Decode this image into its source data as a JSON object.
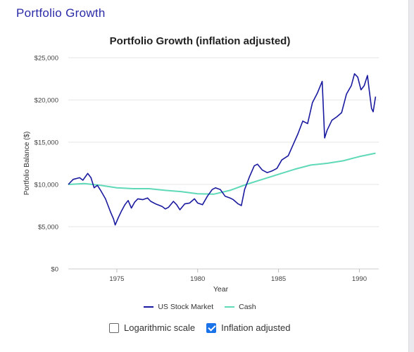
{
  "section_title": "Portfolio Growth",
  "colors": {
    "stock": "#1a1aa0",
    "cash": "#5fd9b8",
    "grid": "#e6e6e6"
  },
  "chart_data": {
    "type": "line",
    "title": "Portfolio Growth (inflation adjusted)",
    "xlabel": "Year",
    "ylabel": "Portfolio Balance ($)",
    "xlim": [
      1972,
      1991.2
    ],
    "ylim": [
      0,
      25000
    ],
    "x_ticks": [
      1975,
      1980,
      1985,
      1990
    ],
    "y_ticks": [
      0,
      5000,
      10000,
      15000,
      20000,
      25000
    ],
    "y_tick_labels": [
      "$0",
      "$5,000",
      "$10,000",
      "$15,000",
      "$20,000",
      "$25,000"
    ],
    "grid": true,
    "legend_position": "bottom",
    "series": [
      {
        "name": "US Stock Market",
        "points": [
          [
            1972.0,
            10000
          ],
          [
            1972.3,
            10600
          ],
          [
            1972.7,
            10800
          ],
          [
            1972.9,
            10500
          ],
          [
            1973.2,
            11300
          ],
          [
            1973.4,
            10800
          ],
          [
            1973.6,
            9600
          ],
          [
            1973.8,
            9900
          ],
          [
            1974.0,
            9300
          ],
          [
            1974.3,
            8300
          ],
          [
            1974.6,
            6800
          ],
          [
            1974.8,
            5900
          ],
          [
            1974.9,
            5200
          ],
          [
            1975.1,
            6100
          ],
          [
            1975.3,
            6900
          ],
          [
            1975.5,
            7600
          ],
          [
            1975.7,
            8100
          ],
          [
            1975.9,
            7200
          ],
          [
            1976.1,
            7900
          ],
          [
            1976.3,
            8300
          ],
          [
            1976.6,
            8200
          ],
          [
            1976.9,
            8400
          ],
          [
            1977.1,
            8000
          ],
          [
            1977.4,
            7700
          ],
          [
            1977.8,
            7400
          ],
          [
            1978.0,
            7100
          ],
          [
            1978.2,
            7300
          ],
          [
            1978.5,
            8000
          ],
          [
            1978.7,
            7600
          ],
          [
            1978.9,
            7000
          ],
          [
            1979.2,
            7700
          ],
          [
            1979.5,
            7800
          ],
          [
            1979.8,
            8300
          ],
          [
            1980.0,
            7800
          ],
          [
            1980.3,
            7600
          ],
          [
            1980.6,
            8600
          ],
          [
            1980.9,
            9400
          ],
          [
            1981.1,
            9600
          ],
          [
            1981.4,
            9400
          ],
          [
            1981.7,
            8600
          ],
          [
            1982.0,
            8400
          ],
          [
            1982.2,
            8200
          ],
          [
            1982.5,
            7700
          ],
          [
            1982.7,
            7500
          ],
          [
            1982.9,
            9400
          ],
          [
            1983.2,
            10900
          ],
          [
            1983.5,
            12200
          ],
          [
            1983.7,
            12400
          ],
          [
            1984.0,
            11700
          ],
          [
            1984.3,
            11400
          ],
          [
            1984.6,
            11600
          ],
          [
            1984.9,
            11900
          ],
          [
            1985.2,
            12900
          ],
          [
            1985.6,
            13400
          ],
          [
            1985.9,
            14700
          ],
          [
            1986.2,
            16000
          ],
          [
            1986.5,
            17500
          ],
          [
            1986.8,
            17200
          ],
          [
            1987.1,
            19700
          ],
          [
            1987.4,
            20800
          ],
          [
            1987.7,
            22200
          ],
          [
            1987.85,
            15500
          ],
          [
            1988.0,
            16400
          ],
          [
            1988.3,
            17600
          ],
          [
            1988.6,
            18000
          ],
          [
            1988.9,
            18500
          ],
          [
            1989.2,
            20700
          ],
          [
            1989.5,
            21700
          ],
          [
            1989.7,
            23100
          ],
          [
            1989.9,
            22700
          ],
          [
            1990.1,
            21200
          ],
          [
            1990.3,
            21700
          ],
          [
            1990.5,
            22900
          ],
          [
            1990.6,
            21300
          ],
          [
            1990.75,
            19000
          ],
          [
            1990.85,
            18600
          ],
          [
            1991.0,
            20400
          ]
        ]
      },
      {
        "name": "Cash",
        "points": [
          [
            1972.0,
            10000
          ],
          [
            1973.0,
            10100
          ],
          [
            1974.0,
            9900
          ],
          [
            1975.0,
            9600
          ],
          [
            1976.0,
            9500
          ],
          [
            1977.0,
            9500
          ],
          [
            1978.0,
            9300
          ],
          [
            1979.0,
            9150
          ],
          [
            1980.0,
            8900
          ],
          [
            1981.0,
            8850
          ],
          [
            1982.0,
            9300
          ],
          [
            1983.0,
            10000
          ],
          [
            1984.0,
            10600
          ],
          [
            1985.0,
            11200
          ],
          [
            1986.0,
            11800
          ],
          [
            1987.0,
            12300
          ],
          [
            1988.0,
            12500
          ],
          [
            1989.0,
            12800
          ],
          [
            1990.0,
            13300
          ],
          [
            1991.0,
            13700
          ]
        ]
      }
    ]
  },
  "legend": [
    {
      "label": "US Stock Market",
      "color": "#1a1aa0"
    },
    {
      "label": "Cash",
      "color": "#5fd9b8"
    }
  ],
  "controls": {
    "log_scale": {
      "label": "Logarithmic scale",
      "checked": false
    },
    "inflation": {
      "label": "Inflation adjusted",
      "checked": true
    }
  }
}
